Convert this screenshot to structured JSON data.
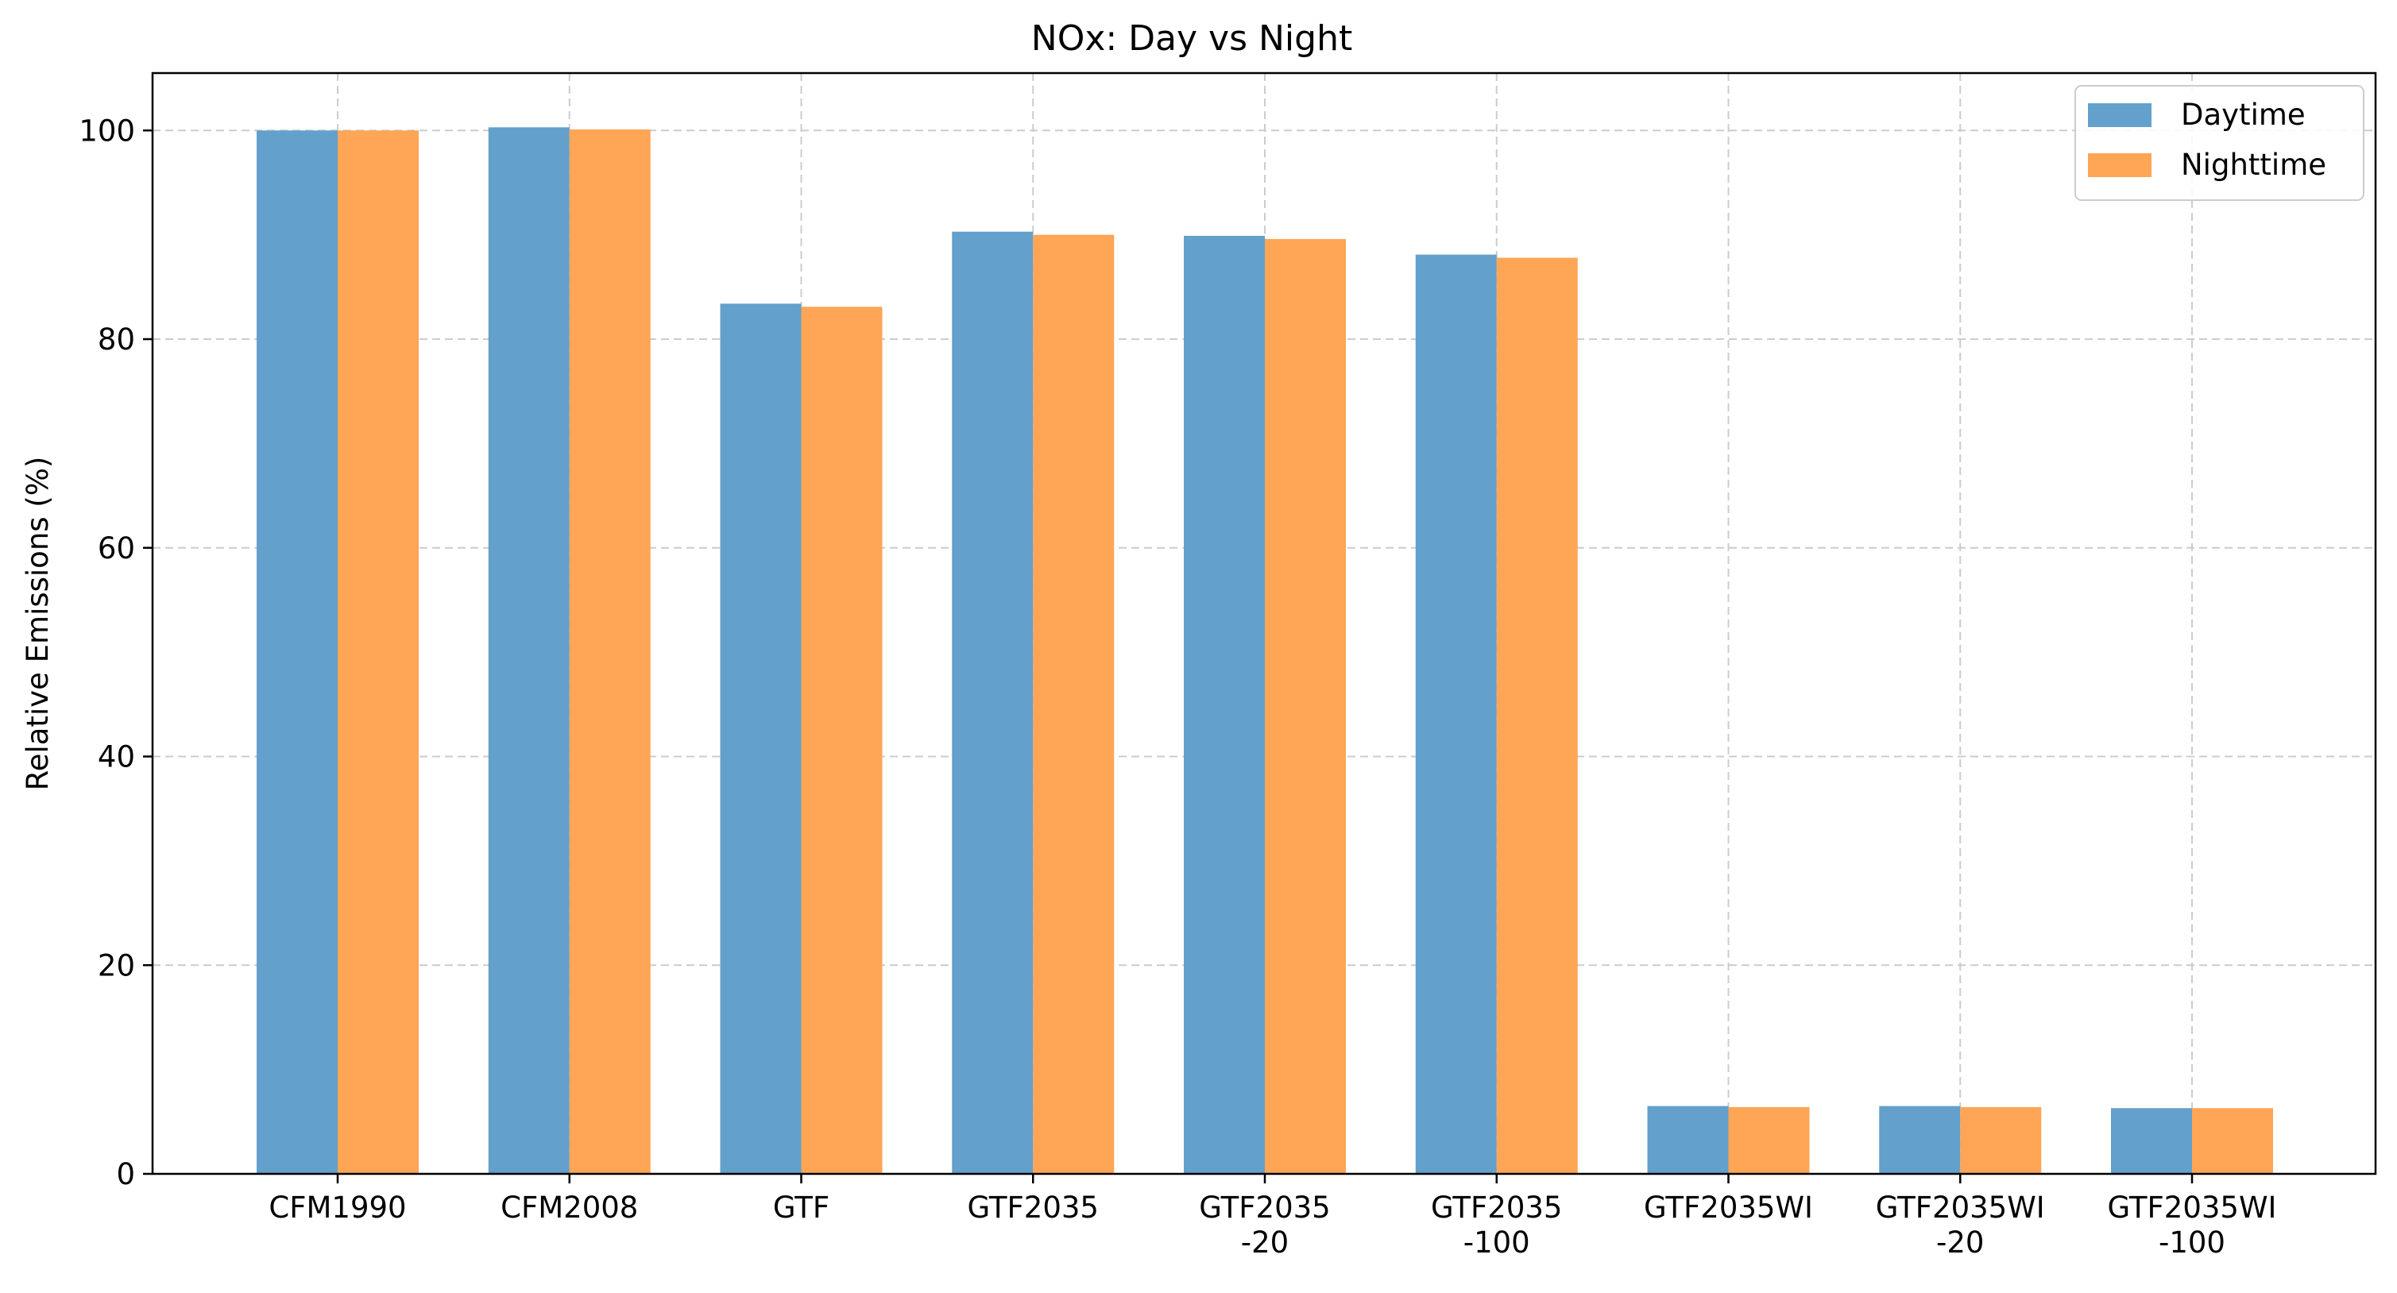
{
  "chart_data": {
    "type": "bar",
    "title": "NOx: Day vs Night",
    "xlabel": "",
    "ylabel": "Relative Emissions (%)",
    "ylim": [
      0,
      105.5
    ],
    "yticks": [
      0,
      20,
      40,
      60,
      80,
      100
    ],
    "grid": true,
    "legend": "top-right",
    "categories": [
      [
        "CFM1990"
      ],
      [
        "CFM2008"
      ],
      [
        "GTF"
      ],
      [
        "GTF2035"
      ],
      [
        "GTF2035",
        "-20"
      ],
      [
        "GTF2035",
        "-100"
      ],
      [
        "GTF2035WI"
      ],
      [
        "GTF2035WI",
        "-20"
      ],
      [
        "GTF2035WI",
        "-100"
      ]
    ],
    "series": [
      {
        "name": "Daytime",
        "color": "#63a0cb",
        "values": [
          100.0,
          100.3,
          83.4,
          90.3,
          89.9,
          88.1,
          6.5,
          6.5,
          6.3
        ]
      },
      {
        "name": "Nighttime",
        "color": "#ffa556",
        "values": [
          100.0,
          100.1,
          83.1,
          90.0,
          89.6,
          87.8,
          6.4,
          6.4,
          6.3
        ]
      }
    ]
  }
}
